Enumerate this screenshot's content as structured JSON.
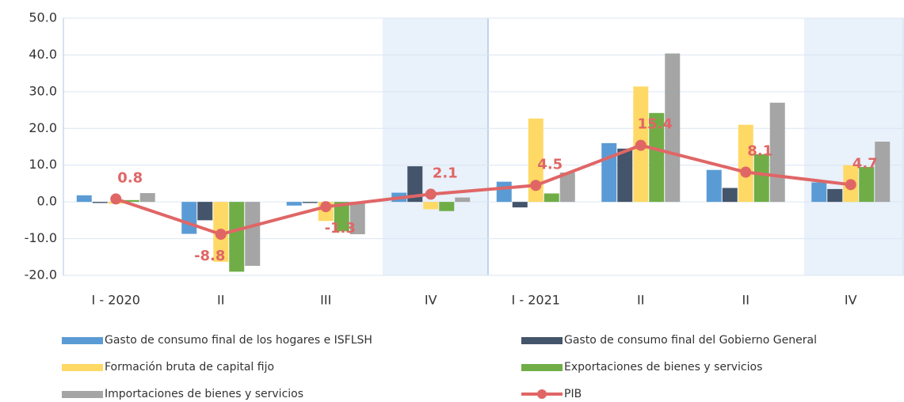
{
  "chart_data": {
    "type": "bar",
    "categories": [
      "I - 2020",
      "II",
      "III",
      "IV",
      "I - 2021",
      "II",
      "II",
      "IV"
    ],
    "series": [
      {
        "name": "Gasto de consumo final de los hogares e ISFLSH",
        "color": "#5b9bd5",
        "values": [
          1.8,
          -8.7,
          -1.0,
          2.5,
          5.5,
          16.0,
          8.7,
          5.3
        ]
      },
      {
        "name": "Gasto de consumo final del Gobierno General",
        "color": "#44546a",
        "values": [
          -0.3,
          -5.0,
          -0.3,
          9.7,
          -1.5,
          14.5,
          3.8,
          3.5
        ]
      },
      {
        "name": "Formación bruta de capital fijo",
        "color": "#ffd966",
        "values": [
          -0.5,
          -16.3,
          -5.2,
          -2.0,
          22.7,
          31.4,
          21.0,
          10.0
        ]
      },
      {
        "name": "Exportaciones de bienes y servicios",
        "color": "#70ad47",
        "values": [
          0.5,
          -19.0,
          -8.0,
          -2.5,
          2.3,
          24.2,
          13.0,
          9.5
        ]
      },
      {
        "name": "Importaciones de bienes y servicios",
        "color": "#a5a5a5",
        "values": [
          2.4,
          -17.4,
          -8.8,
          1.2,
          8.0,
          40.4,
          27.0,
          16.4
        ]
      },
      {
        "name": "PIB",
        "type": "line",
        "color": "#e06666",
        "values": [
          0.8,
          -8.8,
          -1.3,
          2.1,
          4.5,
          15.4,
          8.1,
          4.7
        ]
      }
    ],
    "ylim": [
      -20,
      50
    ],
    "yticks": [
      {
        "value": -20,
        "label": "-20.0"
      },
      {
        "value": -10,
        "label": "-10.0"
      },
      {
        "value": 0,
        "label": "0.0"
      },
      {
        "value": 10,
        "label": "10.0"
      },
      {
        "value": 20,
        "label": "20.0"
      },
      {
        "value": 30,
        "label": "30.0"
      },
      {
        "value": 40,
        "label": "40.0"
      },
      {
        "value": 50,
        "label": "50.0"
      }
    ],
    "grid": true
  }
}
